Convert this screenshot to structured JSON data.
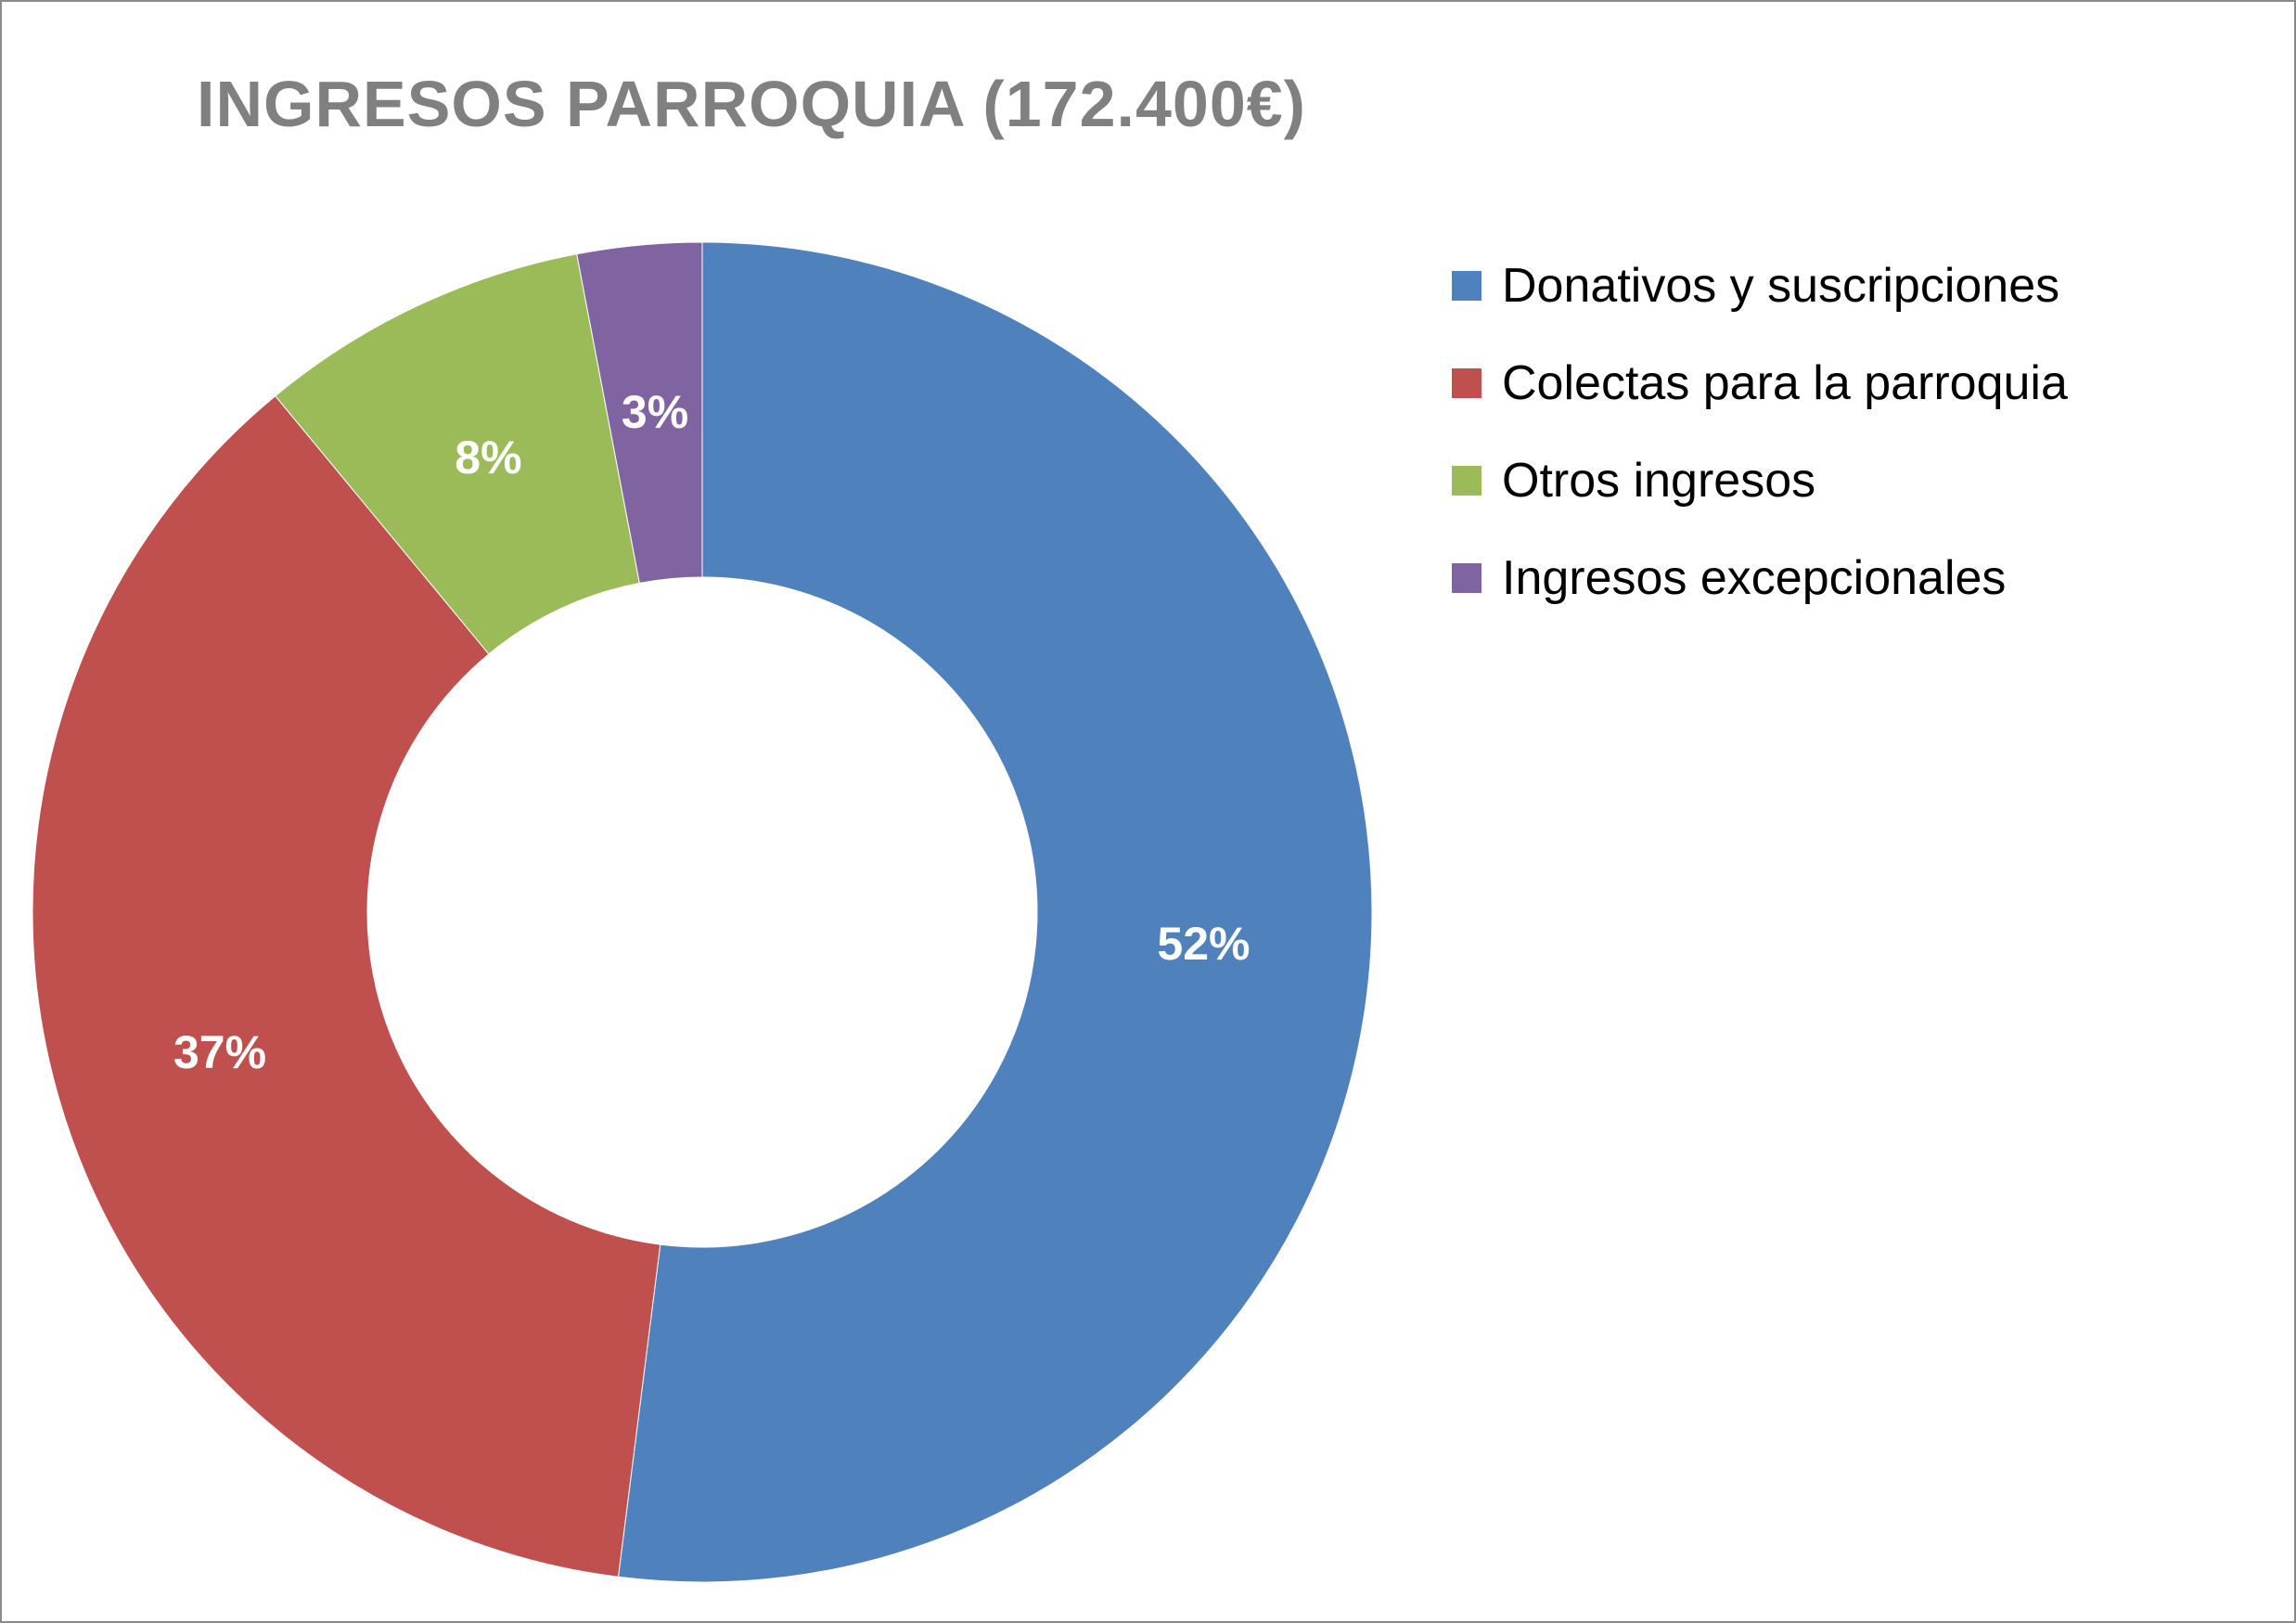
{
  "chart_data": {
    "type": "pie",
    "title": "INGRESOS PARROQUIA (172.400€)",
    "hole": true,
    "legend_position": "right",
    "slices": [
      {
        "name": "Donativos y suscripciones",
        "value": 52,
        "label": "52%",
        "color": "#4F81BD"
      },
      {
        "name": "Colectas para la parroquia",
        "value": 37,
        "label": "37%",
        "color": "#C0504D"
      },
      {
        "name": "Otros ingresos",
        "value": 8,
        "label": "8%",
        "color": "#9BBB59"
      },
      {
        "name": "Ingresos excepcionales",
        "value": 3,
        "label": "3%",
        "color": "#8064A2"
      }
    ]
  }
}
